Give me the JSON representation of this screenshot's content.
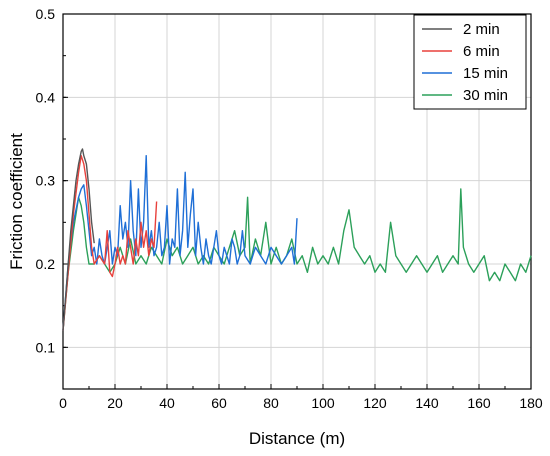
{
  "chart_data": {
    "type": "line",
    "xlabel": "Distance (m)",
    "ylabel": "Friction coefficient",
    "xlim": [
      0,
      180
    ],
    "ylim": [
      0.05,
      0.5
    ],
    "xticks": [
      0,
      20,
      40,
      60,
      80,
      100,
      120,
      140,
      160,
      180
    ],
    "yticks": [
      0.1,
      0.2,
      0.3,
      0.4,
      0.5
    ],
    "grid": true,
    "legend_position": "top-right",
    "series": [
      {
        "name": "2 min",
        "color": "#555555",
        "x": [
          0,
          1,
          2,
          3,
          4,
          5,
          6,
          7,
          7.5,
          8,
          9,
          10,
          11,
          12
        ],
        "y": [
          0.12,
          0.16,
          0.2,
          0.24,
          0.27,
          0.3,
          0.32,
          0.335,
          0.338,
          0.33,
          0.32,
          0.29,
          0.25,
          0.225
        ]
      },
      {
        "name": "6 min",
        "color": "#e8413c",
        "x": [
          0,
          2,
          4,
          6,
          7,
          8,
          9,
          10,
          11,
          12,
          14,
          16,
          17,
          18,
          19,
          20,
          21,
          22,
          23,
          24,
          25,
          26,
          27,
          28,
          29,
          30,
          31,
          32,
          33,
          34,
          35,
          36
        ],
        "y": [
          0.12,
          0.19,
          0.26,
          0.31,
          0.33,
          0.32,
          0.3,
          0.26,
          0.22,
          0.2,
          0.21,
          0.2,
          0.24,
          0.19,
          0.185,
          0.2,
          0.22,
          0.2,
          0.21,
          0.2,
          0.24,
          0.22,
          0.2,
          0.23,
          0.21,
          0.25,
          0.22,
          0.24,
          0.21,
          0.23,
          0.22,
          0.275
        ]
      },
      {
        "name": "15 min",
        "color": "#1f6fd6",
        "x": [
          0,
          2,
          4,
          6,
          7,
          8,
          9,
          10,
          11,
          12,
          13,
          14,
          15,
          16,
          17,
          18,
          19,
          20,
          21,
          22,
          23,
          24,
          25,
          26,
          27,
          28,
          29,
          30,
          31,
          32,
          33,
          34,
          35,
          36,
          37,
          38,
          39,
          40,
          41,
          42,
          43,
          44,
          45,
          46,
          47,
          48,
          49,
          50,
          51,
          52,
          53,
          54,
          55,
          56,
          57,
          58,
          59,
          60,
          61,
          62,
          63,
          64,
          65,
          66,
          67,
          68,
          69,
          70,
          72,
          74,
          76,
          78,
          80,
          82,
          84,
          86,
          88,
          89,
          90
        ],
        "y": [
          0.12,
          0.2,
          0.25,
          0.28,
          0.29,
          0.295,
          0.27,
          0.24,
          0.21,
          0.22,
          0.2,
          0.23,
          0.21,
          0.2,
          0.22,
          0.24,
          0.2,
          0.22,
          0.21,
          0.27,
          0.23,
          0.25,
          0.22,
          0.3,
          0.24,
          0.21,
          0.29,
          0.22,
          0.25,
          0.33,
          0.22,
          0.24,
          0.21,
          0.22,
          0.25,
          0.21,
          0.22,
          0.27,
          0.2,
          0.23,
          0.22,
          0.29,
          0.21,
          0.24,
          0.31,
          0.22,
          0.26,
          0.29,
          0.21,
          0.25,
          0.22,
          0.2,
          0.23,
          0.21,
          0.2,
          0.22,
          0.24,
          0.21,
          0.2,
          0.22,
          0.21,
          0.2,
          0.23,
          0.22,
          0.2,
          0.21,
          0.24,
          0.21,
          0.2,
          0.22,
          0.21,
          0.2,
          0.22,
          0.21,
          0.2,
          0.21,
          0.22,
          0.2,
          0.255
        ]
      },
      {
        "name": "30 min",
        "color": "#2ca05a",
        "x": [
          0,
          2,
          4,
          6,
          7,
          8,
          9,
          10,
          12,
          14,
          16,
          18,
          20,
          22,
          24,
          26,
          28,
          30,
          32,
          34,
          36,
          38,
          40,
          42,
          44,
          46,
          48,
          50,
          52,
          54,
          56,
          58,
          60,
          62,
          64,
          66,
          68,
          70,
          71,
          72,
          74,
          76,
          78,
          80,
          82,
          84,
          86,
          88,
          90,
          92,
          94,
          96,
          98,
          100,
          102,
          104,
          106,
          108,
          110,
          112,
          114,
          116,
          118,
          120,
          122,
          124,
          126,
          128,
          130,
          132,
          134,
          136,
          138,
          140,
          142,
          144,
          146,
          148,
          150,
          152,
          153,
          154,
          156,
          158,
          160,
          162,
          164,
          166,
          168,
          170,
          172,
          174,
          176,
          178,
          180
        ],
        "y": [
          0.12,
          0.19,
          0.24,
          0.28,
          0.27,
          0.25,
          0.22,
          0.2,
          0.2,
          0.21,
          0.2,
          0.19,
          0.2,
          0.22,
          0.2,
          0.23,
          0.2,
          0.21,
          0.2,
          0.22,
          0.21,
          0.2,
          0.23,
          0.21,
          0.22,
          0.2,
          0.21,
          0.22,
          0.2,
          0.21,
          0.2,
          0.22,
          0.21,
          0.2,
          0.22,
          0.24,
          0.21,
          0.22,
          0.28,
          0.2,
          0.23,
          0.21,
          0.25,
          0.2,
          0.22,
          0.2,
          0.21,
          0.23,
          0.2,
          0.21,
          0.19,
          0.22,
          0.2,
          0.21,
          0.2,
          0.22,
          0.2,
          0.24,
          0.265,
          0.22,
          0.21,
          0.2,
          0.21,
          0.19,
          0.2,
          0.19,
          0.25,
          0.21,
          0.2,
          0.19,
          0.2,
          0.21,
          0.2,
          0.19,
          0.2,
          0.21,
          0.19,
          0.2,
          0.21,
          0.2,
          0.29,
          0.22,
          0.2,
          0.19,
          0.2,
          0.21,
          0.18,
          0.19,
          0.18,
          0.2,
          0.19,
          0.18,
          0.2,
          0.19,
          0.21
        ]
      }
    ]
  }
}
